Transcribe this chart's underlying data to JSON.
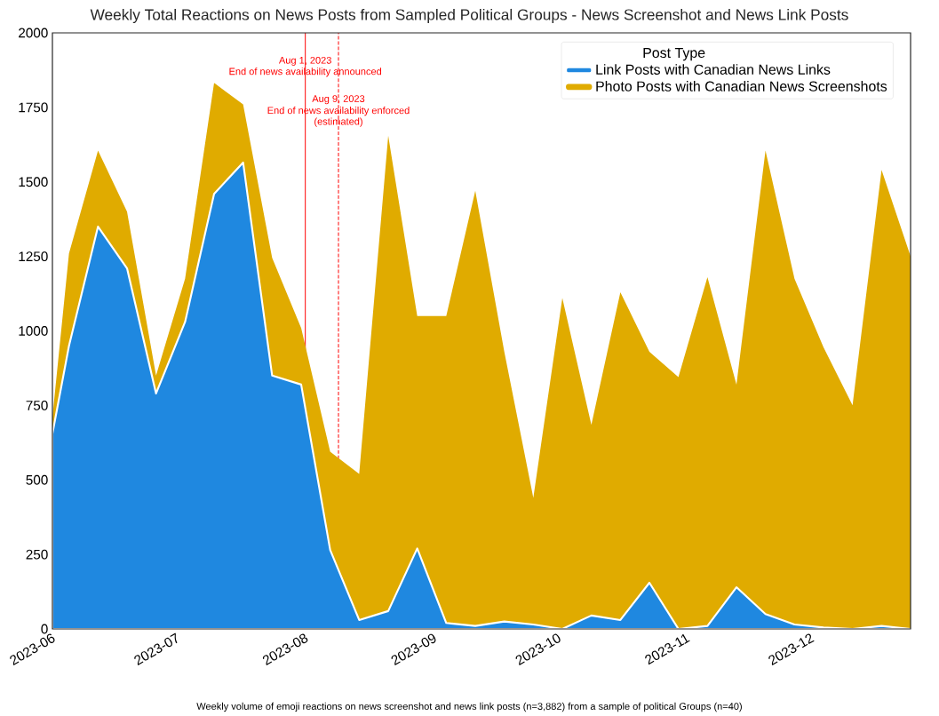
{
  "chart_data": {
    "type": "area",
    "stacked": true,
    "title": "Weekly Total Reactions on News Posts from Sampled Political Groups - News Screenshot and News Link Posts",
    "x": [
      "2023-06-01",
      "2023-06-05",
      "2023-06-12",
      "2023-06-19",
      "2023-06-26",
      "2023-07-03",
      "2023-07-10",
      "2023-07-17",
      "2023-07-24",
      "2023-07-31",
      "2023-08-07",
      "2023-08-14",
      "2023-08-21",
      "2023-08-28",
      "2023-09-04",
      "2023-09-11",
      "2023-09-18",
      "2023-09-25",
      "2023-10-02",
      "2023-10-09",
      "2023-10-16",
      "2023-10-23",
      "2023-10-30",
      "2023-11-06",
      "2023-11-13",
      "2023-11-20",
      "2023-11-27",
      "2023-12-04",
      "2023-12-11",
      "2023-12-18",
      "2023-12-25"
    ],
    "series": [
      {
        "name": "Link Posts with Canadian News Links",
        "color": "#1f88e0",
        "values": [
          655,
          950,
          1350,
          1210,
          790,
          1030,
          1460,
          1565,
          850,
          820,
          265,
          30,
          60,
          270,
          20,
          10,
          25,
          15,
          0,
          45,
          30,
          155,
          0,
          10,
          140,
          50,
          15,
          5,
          0,
          10,
          0
        ]
      },
      {
        "name": "Photo Posts with Canadian News Screenshots",
        "color": "#e0ab00",
        "values": [
          55,
          310,
          255,
          190,
          60,
          145,
          372,
          195,
          395,
          190,
          330,
          490,
          1595,
          780,
          1030,
          1460,
          905,
          425,
          1110,
          640,
          1100,
          775,
          845,
          1170,
          680,
          1555,
          1160,
          940,
          750,
          1530,
          1250
        ]
      }
    ],
    "xlim": [
      "2023-06-01",
      "2023-12-25"
    ],
    "xticks": [
      {
        "value": "2023-06-01",
        "label": "2023-06"
      },
      {
        "value": "2023-07-01",
        "label": "2023-07"
      },
      {
        "value": "2023-08-01",
        "label": "2023-08"
      },
      {
        "value": "2023-09-01",
        "label": "2023-09"
      },
      {
        "value": "2023-10-01",
        "label": "2023-10"
      },
      {
        "value": "2023-11-01",
        "label": "2023-11"
      },
      {
        "value": "2023-12-01",
        "label": "2023-12"
      }
    ],
    "ylim": [
      0,
      2000
    ],
    "yticks": [
      0,
      250,
      500,
      750,
      1000,
      1250,
      1500,
      1750,
      2000
    ],
    "legend": "top right",
    "legend_title": "Post Type",
    "grid": false,
    "ref_lines": [
      {
        "axis": "x",
        "value": "2023-08-01",
        "color": "#ff0000",
        "line_style": "solid"
      },
      {
        "axis": "x",
        "value": "2023-08-09",
        "color": "#ff0000",
        "line_style": "dashed"
      }
    ],
    "annotations": [
      {
        "text": "Aug 1, 2023",
        "x": "2023-08-01",
        "y": 1905
      },
      {
        "text": "End of news availability announced",
        "x": "2023-08-01",
        "y": 1868
      },
      {
        "text": "Aug 9, 2023",
        "x": "2023-08-09",
        "y": 1776
      },
      {
        "text": "End of news availability enforced",
        "x": "2023-08-09",
        "y": 1737
      },
      {
        "text": "(estimated)",
        "x": "2023-08-09",
        "y": 1700
      },
      "Weekly volume of emoji reactions on news screenshot and news link posts (n=3,882) from a sample of political Groups (n=40)"
    ]
  }
}
